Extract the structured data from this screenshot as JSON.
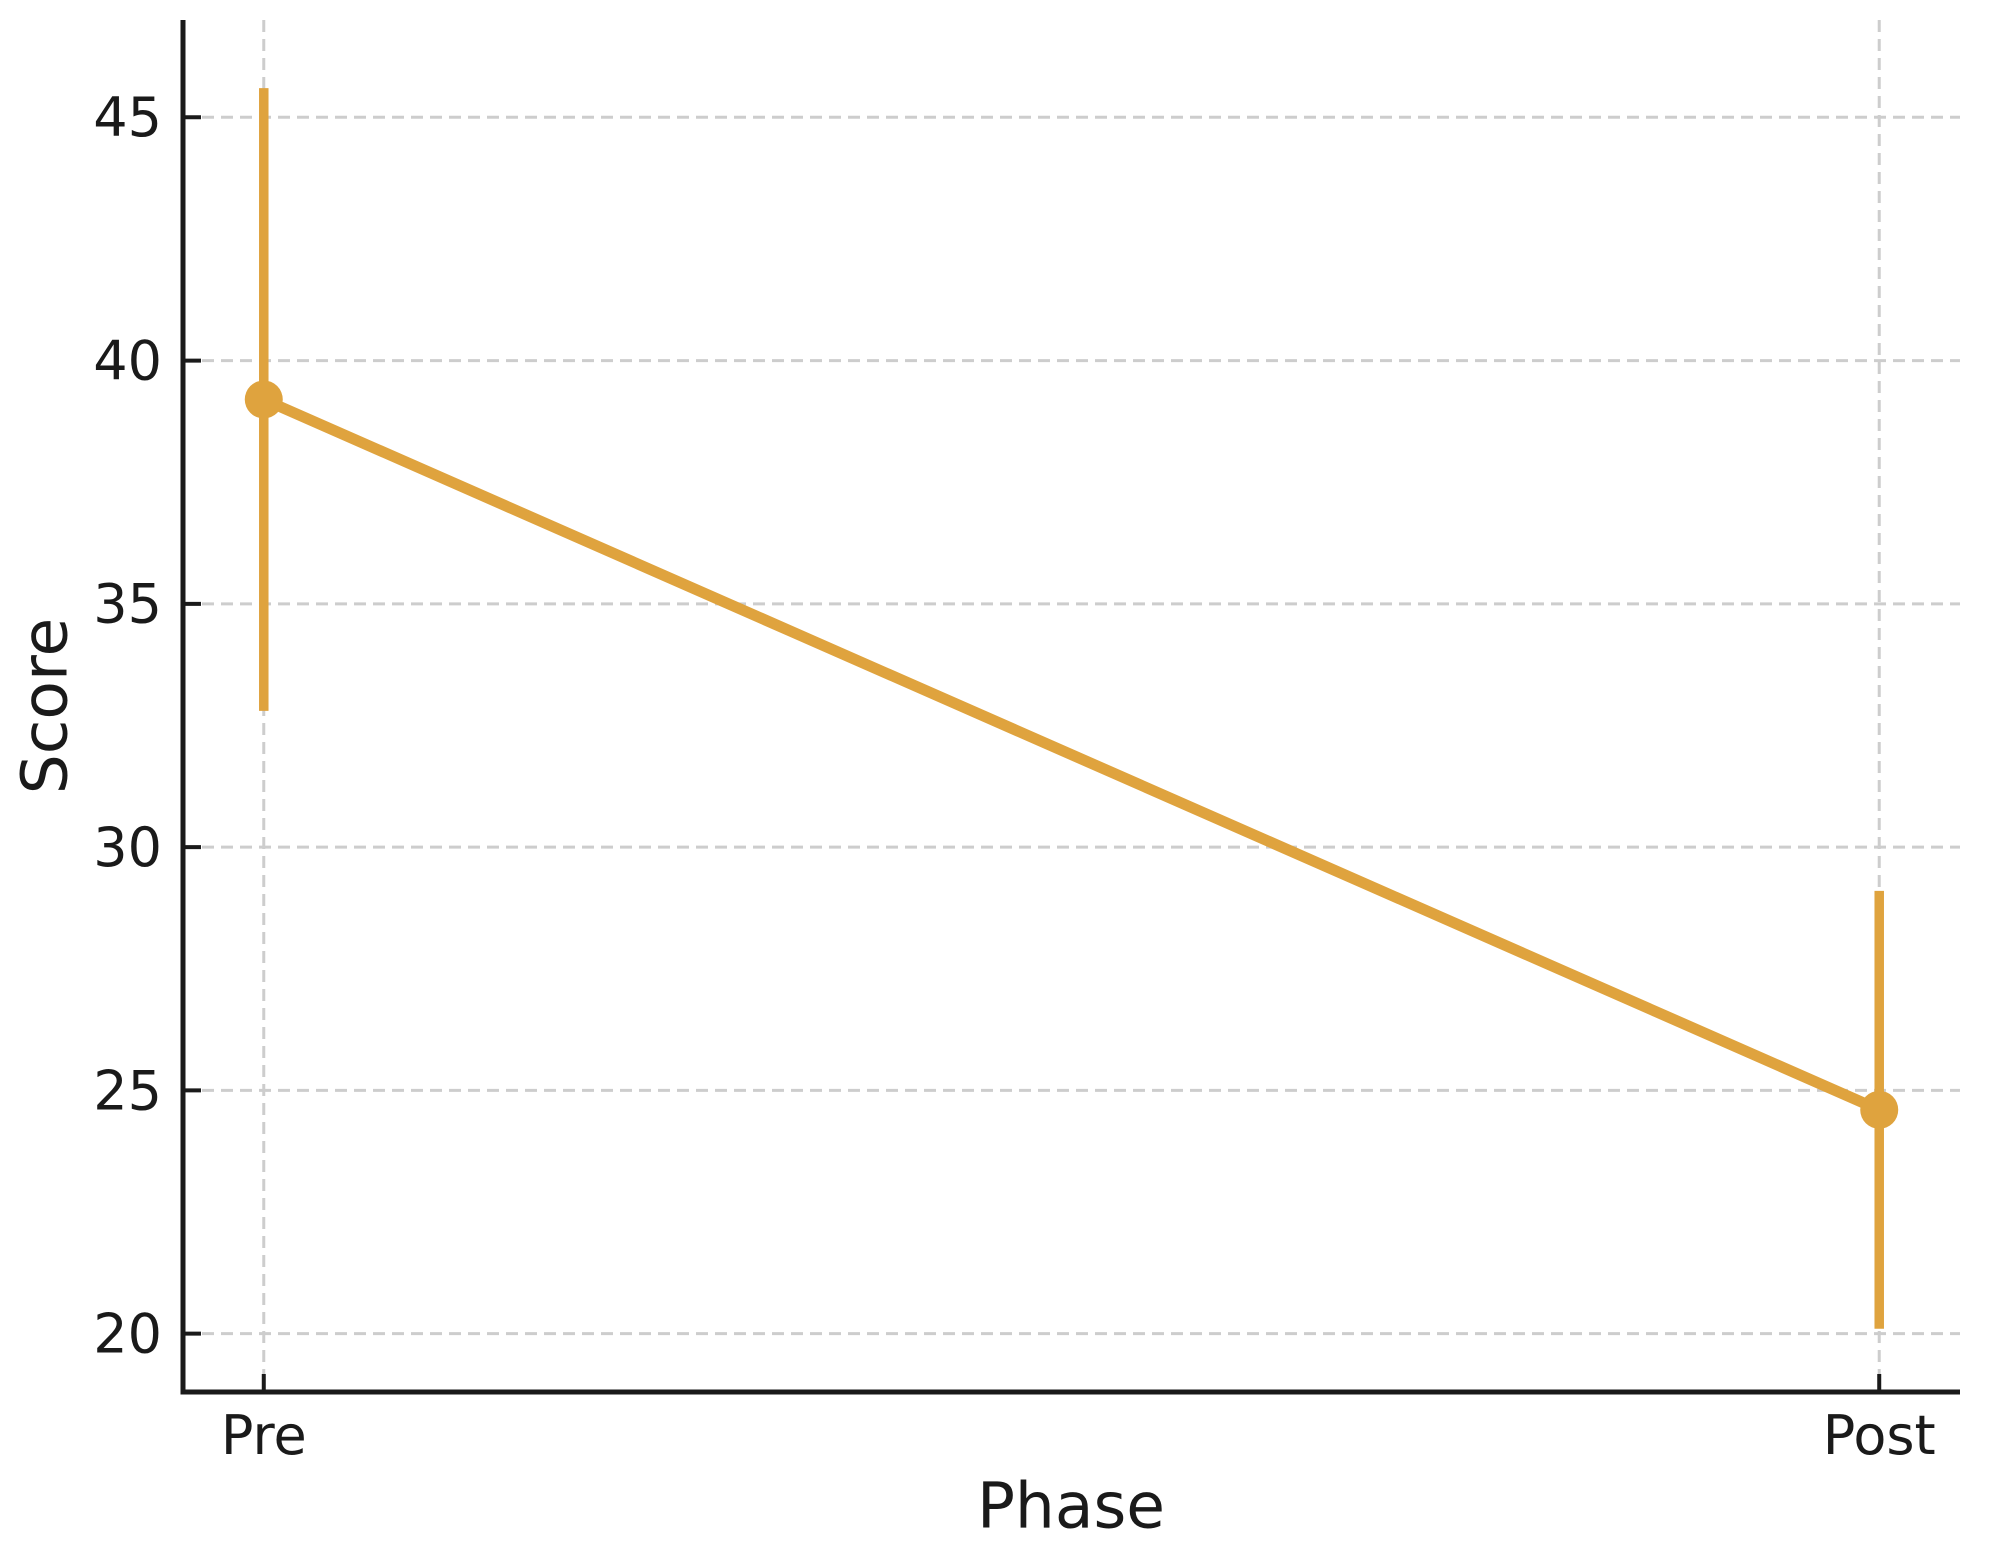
{
  "chart_data": {
    "type": "line",
    "title": "",
    "xlabel": "Phase",
    "ylabel": "Score",
    "categories": [
      "Pre",
      "Post"
    ],
    "yticks": [
      20,
      25,
      30,
      35,
      40,
      45
    ],
    "ytick_labels": [
      "20",
      "25",
      "30",
      "35",
      "40",
      "45"
    ],
    "ylim": [
      18.8,
      47.0
    ],
    "series": [
      {
        "name": "Score",
        "values": [
          39.2,
          24.6
        ],
        "ci_low": [
          32.8,
          20.1
        ],
        "ci_high": [
          45.6,
          29.1
        ]
      }
    ],
    "layout_hints": {
      "grid": "dashed, horizontal at each y tick and vertical at each category",
      "legend": "none",
      "marker": "circle with vertical error bars, no caps"
    },
    "colors": {
      "series": "#DFA33E",
      "grid": "#cdcdcd",
      "spine": "#1a1a1a",
      "text": "#1a1a1a"
    }
  }
}
